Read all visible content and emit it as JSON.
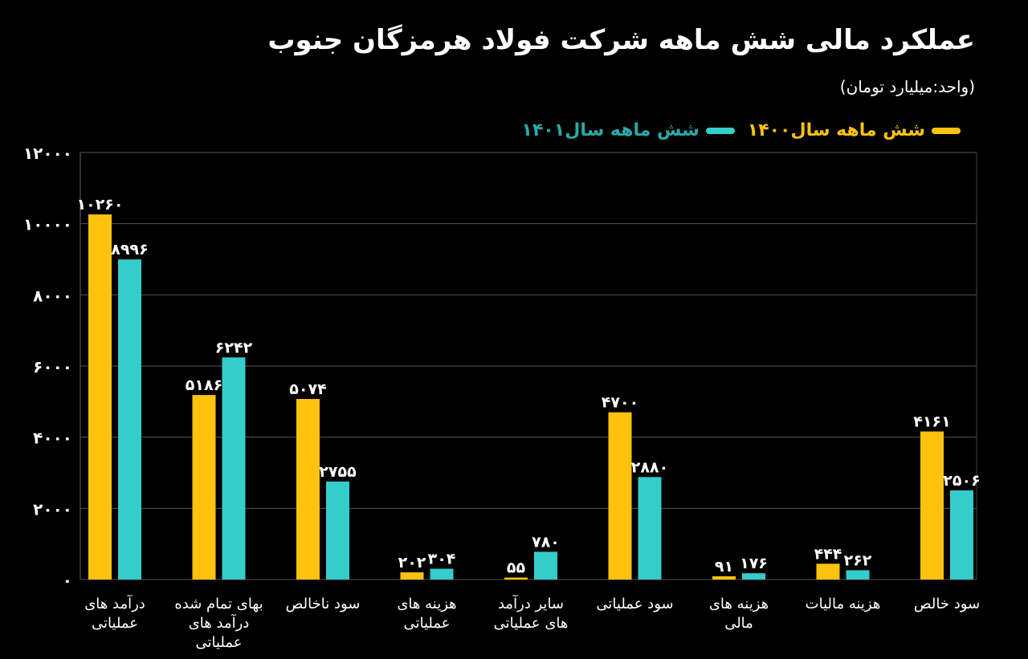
{
  "title": "عملکرد مالی شش ماهه شرکت فولاد هرمزگان جنوب",
  "unit": "(واحد:میلیارد تومان)",
  "colors": {
    "s1400": "#ffc20e",
    "s1401": "#35cccc",
    "legend1401_text": "#2aa8a8",
    "grid": "#555555"
  },
  "chart_data": {
    "type": "bar",
    "title": "عملکرد مالی شش ماهه شرکت فولاد هرمزگان جنوب",
    "ylabel": "میلیارد تومان",
    "ylim": [
      0,
      12000
    ],
    "yticks": [
      0,
      2000,
      4000,
      6000,
      8000,
      10000,
      12000
    ],
    "ytick_labels": [
      "۰",
      "۲۰۰۰",
      "۴۰۰۰",
      "۶۰۰۰",
      "۸۰۰۰",
      "۱۰۰۰۰",
      "۱۲۰۰۰"
    ],
    "grid": true,
    "legend_position": "top-right",
    "categories": [
      [
        "درآمد های",
        "عملیاتی"
      ],
      [
        "بهای تمام شده",
        "درآمد های",
        "عملیاتی"
      ],
      [
        "سود ناخالص"
      ],
      [
        "هزینه های",
        "عملیاتی"
      ],
      [
        "سایر درآمد",
        "های عملیاتی"
      ],
      [
        "سود عملیاتی"
      ],
      [
        "هزینه های",
        "مالی"
      ],
      [
        "هزینه مالیات"
      ],
      [
        "سود خالص"
      ]
    ],
    "series": [
      {
        "name": "شش ماهه سال۱۴۰۰",
        "values": [
          10260,
          5186,
          5074,
          202,
          55,
          4700,
          91,
          444,
          4161
        ],
        "labels": [
          "۱۰۲۶۰",
          "۵۱۸۶",
          "۵۰۷۴",
          "۲۰۲",
          "۵۵",
          "۴۷۰۰",
          "۹۱",
          "۴۴۴",
          "۴۱۶۱"
        ]
      },
      {
        "name": "شش ماهه سال۱۴۰۱",
        "values": [
          8996,
          6242,
          2755,
          304,
          780,
          2880,
          176,
          262,
          2506
        ],
        "labels": [
          "۸۹۹۶",
          "۶۲۴۲",
          "۲۷۵۵",
          "۳۰۴",
          "۷۸۰",
          "۲۸۸۰",
          "۱۷۶",
          "۲۶۲",
          "۲۵۰۶"
        ]
      }
    ]
  }
}
